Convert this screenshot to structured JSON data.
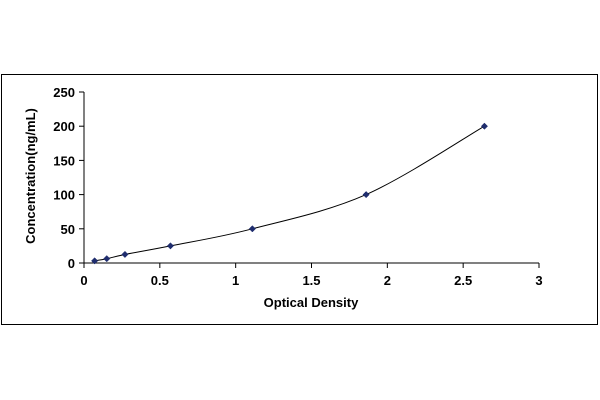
{
  "chart_data": {
    "type": "scatter",
    "title": "",
    "xlabel": "Optical Density",
    "ylabel": "Concentration(ng/mL)",
    "xlim": [
      0,
      3
    ],
    "ylim": [
      0,
      250
    ],
    "x_ticks": [
      "0",
      "0.5",
      "1",
      "1.5",
      "2",
      "2.5",
      "3"
    ],
    "y_ticks": [
      "0",
      "50",
      "100",
      "150",
      "200",
      "250"
    ],
    "grid": false,
    "legend": "none",
    "series": [
      {
        "x": [
          0.07,
          0.15,
          0.27,
          0.57,
          1.11,
          1.86,
          2.64
        ],
        "y": [
          3.12,
          6.25,
          12.5,
          25,
          50,
          100,
          200
        ],
        "marker": "diamond",
        "trendline": "smooth",
        "marker_color": "#1f2d6e",
        "line_color": "#000000"
      }
    ]
  }
}
